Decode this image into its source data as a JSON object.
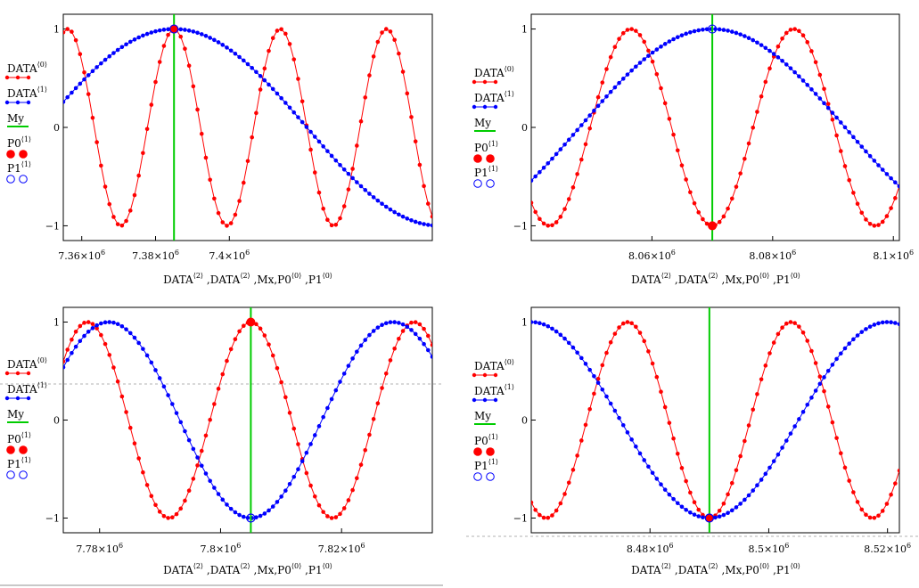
{
  "colors": {
    "data0": "#ff0000",
    "data1": "#0000ff",
    "my": "#00cc00",
    "frame": "#000000",
    "guide": "#b0b0b0"
  },
  "legend": [
    {
      "key": "data0",
      "label": "DATA",
      "sup": "⟨0⟩",
      "style": "line-dots",
      "color": "#ff0000"
    },
    {
      "key": "data1",
      "label": "DATA",
      "sup": "⟨1⟩",
      "style": "line-dots",
      "color": "#0000ff"
    },
    {
      "key": "my",
      "label": "My",
      "sup": "",
      "style": "line",
      "color": "#00cc00"
    },
    {
      "key": "p0",
      "label": "P0",
      "sup": "⟨1⟩",
      "style": "big-dots",
      "color": "#ff0000"
    },
    {
      "key": "p1",
      "label": "P1",
      "sup": "⟨1⟩",
      "style": "open-circles",
      "color": "#0000ff"
    }
  ],
  "x_axis_label": {
    "parts": [
      {
        "t": "DATA"
      },
      {
        "s": "⟨2⟩"
      },
      {
        "t": " ,DATA"
      },
      {
        "s": "⟨2⟩"
      },
      {
        "t": " ,Mx,P0"
      },
      {
        "s": "⟨0⟩"
      },
      {
        "t": " ,P1"
      },
      {
        "s": "⟨0⟩"
      }
    ]
  },
  "chart_data": [
    {
      "type": "line",
      "xlim": [
        7355000,
        7455000
      ],
      "ylim": [
        -1.15,
        1.15
      ],
      "yticks": [
        {
          "v": 1,
          "label": "1"
        },
        {
          "v": 0,
          "label": "0"
        },
        {
          "v": -1,
          "label": "−1"
        }
      ],
      "xticks": [
        {
          "v": 7360000,
          "mant": "7.36×10",
          "exp": "6"
        },
        {
          "v": 7380000,
          "mant": "7.38×10",
          "exp": "6"
        },
        {
          "v": 7400000,
          "mant": "7.4×10",
          "exp": "6"
        }
      ],
      "series": [
        {
          "key": "data0",
          "x_start": 7355000,
          "x_end": 7455000,
          "points": 89,
          "center": 7385000,
          "period": 28800,
          "amplitude": 1,
          "sign": 1
        },
        {
          "key": "data1",
          "x_start": 7355000,
          "x_end": 7455000,
          "points": 89,
          "center": 7385000,
          "period": 144000,
          "amplitude": 1,
          "sign": 1
        }
      ],
      "my_line_x": 7385000,
      "p0": {
        "x": 7385000,
        "y": 1
      },
      "p1": {
        "x": 7385000,
        "y": 1
      }
    },
    {
      "type": "line",
      "xlim": [
        8040000,
        8101000
      ],
      "ylim": [
        -1.15,
        1.15
      ],
      "yticks": [
        {
          "v": 1,
          "label": "1"
        },
        {
          "v": 0,
          "label": "0"
        },
        {
          "v": -1,
          "label": "−1"
        }
      ],
      "xticks": [
        {
          "v": 8060000,
          "mant": "8.06×10",
          "exp": "6"
        },
        {
          "v": 8080000,
          "mant": "8.08×10",
          "exp": "6"
        },
        {
          "v": 8100000,
          "mant": "8.1×10",
          "exp": "6"
        }
      ],
      "series": [
        {
          "key": "data0",
          "x_start": 8040000,
          "x_end": 8101000,
          "points": 89,
          "center": 8070000,
          "period": 27000,
          "amplitude": 1,
          "sign": -1
        },
        {
          "key": "data1",
          "x_start": 8040000,
          "x_end": 8101000,
          "points": 89,
          "center": 8070000,
          "period": 88000,
          "amplitude": 1,
          "sign": 1
        }
      ],
      "my_line_x": 8070000,
      "p0": {
        "x": 8070000,
        "y": -1
      },
      "p1": {
        "x": 8070000,
        "y": 1
      }
    },
    {
      "type": "line",
      "xlim": [
        7774000,
        7835000
      ],
      "ylim": [
        -1.15,
        1.15
      ],
      "yticks": [
        {
          "v": 1,
          "label": "1"
        },
        {
          "v": 0,
          "label": "0"
        },
        {
          "v": -1,
          "label": "−1"
        }
      ],
      "xticks": [
        {
          "v": 7780000,
          "mant": "7.78×10",
          "exp": "6"
        },
        {
          "v": 7800000,
          "mant": "7.8×10",
          "exp": "6"
        },
        {
          "v": 7820000,
          "mant": "7.82×10",
          "exp": "6"
        }
      ],
      "series": [
        {
          "key": "data0",
          "x_start": 7774000,
          "x_end": 7835000,
          "points": 89,
          "center": 7805000,
          "period": 27000,
          "amplitude": 1,
          "sign": 1
        },
        {
          "key": "data1",
          "x_start": 7774000,
          "x_end": 7835000,
          "points": 89,
          "center": 7805000,
          "period": 47000,
          "amplitude": 1,
          "sign": -1
        }
      ],
      "my_line_x": 7805000,
      "p0": {
        "x": 7805000,
        "y": 1
      },
      "p1": {
        "x": 7805000,
        "y": -1
      }
    },
    {
      "type": "line",
      "xlim": [
        8460000,
        8522000
      ],
      "ylim": [
        -1.15,
        1.15
      ],
      "yticks": [
        {
          "v": 1,
          "label": "1"
        },
        {
          "v": 0,
          "label": "0"
        },
        {
          "v": -1,
          "label": "−1"
        }
      ],
      "xticks": [
        {
          "v": 8480000,
          "mant": "8.48×10",
          "exp": "6"
        },
        {
          "v": 8500000,
          "mant": "8.5×10",
          "exp": "6"
        },
        {
          "v": 8520000,
          "mant": "8.52×10",
          "exp": "6"
        }
      ],
      "series": [
        {
          "key": "data0",
          "x_start": 8460000,
          "x_end": 8522000,
          "points": 89,
          "center": 8490000,
          "period": 27500,
          "amplitude": 1,
          "sign": -1
        },
        {
          "key": "data1",
          "x_start": 8460000,
          "x_end": 8522000,
          "points": 89,
          "center": 8490000,
          "period": 60000,
          "amplitude": 1,
          "sign": -1
        }
      ],
      "my_line_x": 8490000,
      "p0": {
        "x": 8490000,
        "y": -1
      },
      "p1": {
        "x": 8490000,
        "y": -1
      }
    }
  ]
}
